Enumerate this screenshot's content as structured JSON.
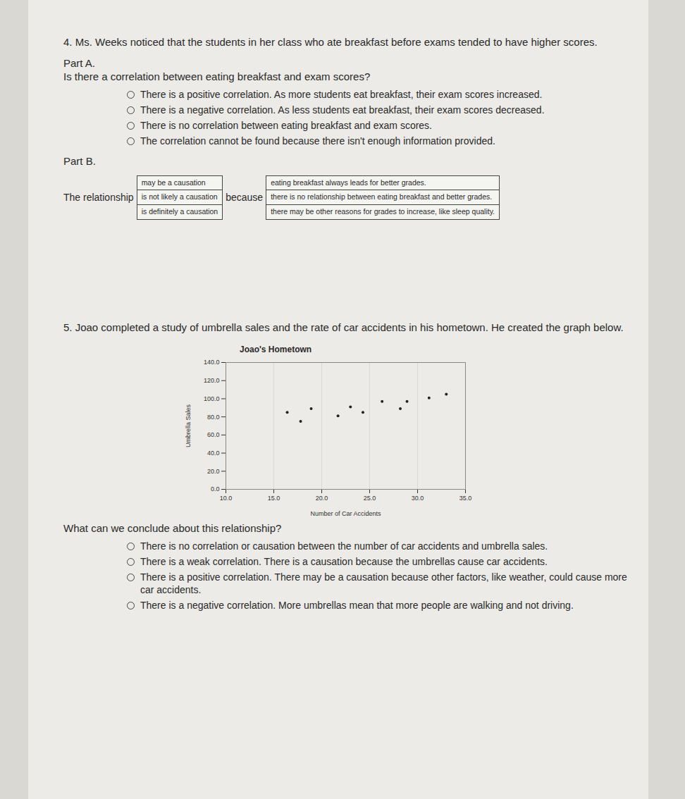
{
  "question4": {
    "number": "4.",
    "text": "Ms. Weeks noticed that the students in her class who ate breakfast before exams tended to have higher scores.",
    "partA": {
      "label": "Part A.",
      "prompt": "Is there a correlation between eating breakfast and exam scores?",
      "options": [
        "There is a positive correlation. As more students eat breakfast, their exam scores increased.",
        "There is a negative correlation. As less students eat breakfast, their exam scores decreased.",
        "There is no correlation between eating breakfast and exam scores.",
        "The correlation cannot be found because there isn't enough information provided."
      ]
    },
    "partB": {
      "label": "Part B.",
      "lead": "The relationship",
      "choices1": [
        "may be a causation",
        "is not likely a causation",
        "is definitely a causation"
      ],
      "connector": "because",
      "choices2": [
        "eating breakfast always leads for better grades.",
        "there is no relationship between eating breakfast and better grades.",
        "there may be other reasons for grades to increase, like sleep quality."
      ]
    }
  },
  "question5": {
    "number": "5.",
    "text": "Joao completed a study of umbrella sales and the rate of car accidents in his hometown. He created the graph below.",
    "prompt": "What can we conclude about this relationship?",
    "options": [
      "There is no correlation or causation between the number of car accidents and umbrella sales.",
      "There is a weak correlation. There is a causation because the umbrellas cause car accidents.",
      "There is a positive correlation. There may be a causation because other factors, like weather, could cause more car accidents.",
      "There is a negative correlation.  More umbrellas mean that more people are walking and not driving."
    ]
  },
  "chart_data": {
    "type": "scatter",
    "title": "Joao's Hometown",
    "x_label": "Number of Car Accidents",
    "y_label": "Umbrella Sales",
    "x": [
      16.4,
      17.8,
      18.9,
      21.7,
      23.0,
      24.3,
      26.3,
      28.2,
      28.9,
      31.2,
      33.0
    ],
    "values": [
      85,
      75,
      89,
      81,
      91,
      85,
      97,
      89,
      97,
      101,
      105
    ],
    "color": "#222222",
    "xlim": [
      10,
      35
    ],
    "xticks": [
      {
        "value": 10,
        "label": "10.0"
      },
      {
        "value": 15,
        "label": "15.0"
      },
      {
        "value": 20,
        "label": "20.0"
      },
      {
        "value": 25,
        "label": "25.0"
      },
      {
        "value": 30,
        "label": "30.0"
      },
      {
        "value": 35,
        "label": "35.0"
      }
    ],
    "ylim": [
      0,
      140
    ],
    "yticks": [
      {
        "value": 0,
        "label": "0.0"
      },
      {
        "value": 20,
        "label": "20.0"
      },
      {
        "value": 40,
        "label": "40.0"
      },
      {
        "value": 60,
        "label": "60.0"
      },
      {
        "value": 80,
        "label": "80.0"
      },
      {
        "value": 100,
        "label": "100.0"
      },
      {
        "value": 120,
        "label": "120.0"
      },
      {
        "value": 140,
        "label": "140.0"
      }
    ],
    "grid": "x"
  }
}
